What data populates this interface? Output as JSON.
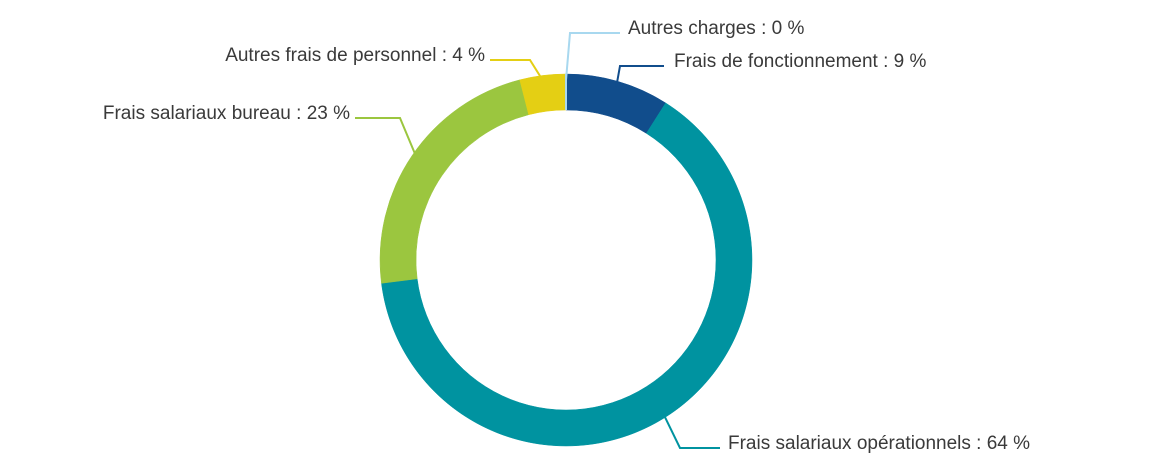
{
  "chart_data": {
    "type": "donut",
    "categories": [
      "Frais de fonctionnement : 9 %",
      "Frais salariaux opérationnels : 64 %",
      "Frais salariaux bureau : 23 %",
      "Autres frais de personnel : 4 %",
      "Autres charges : 0 %"
    ],
    "values": [
      9,
      64,
      23,
      4,
      0
    ],
    "colors": [
      "#114d8c",
      "#0093a0",
      "#9bc63f",
      "#e4cf14",
      "#a8d8ef"
    ]
  }
}
